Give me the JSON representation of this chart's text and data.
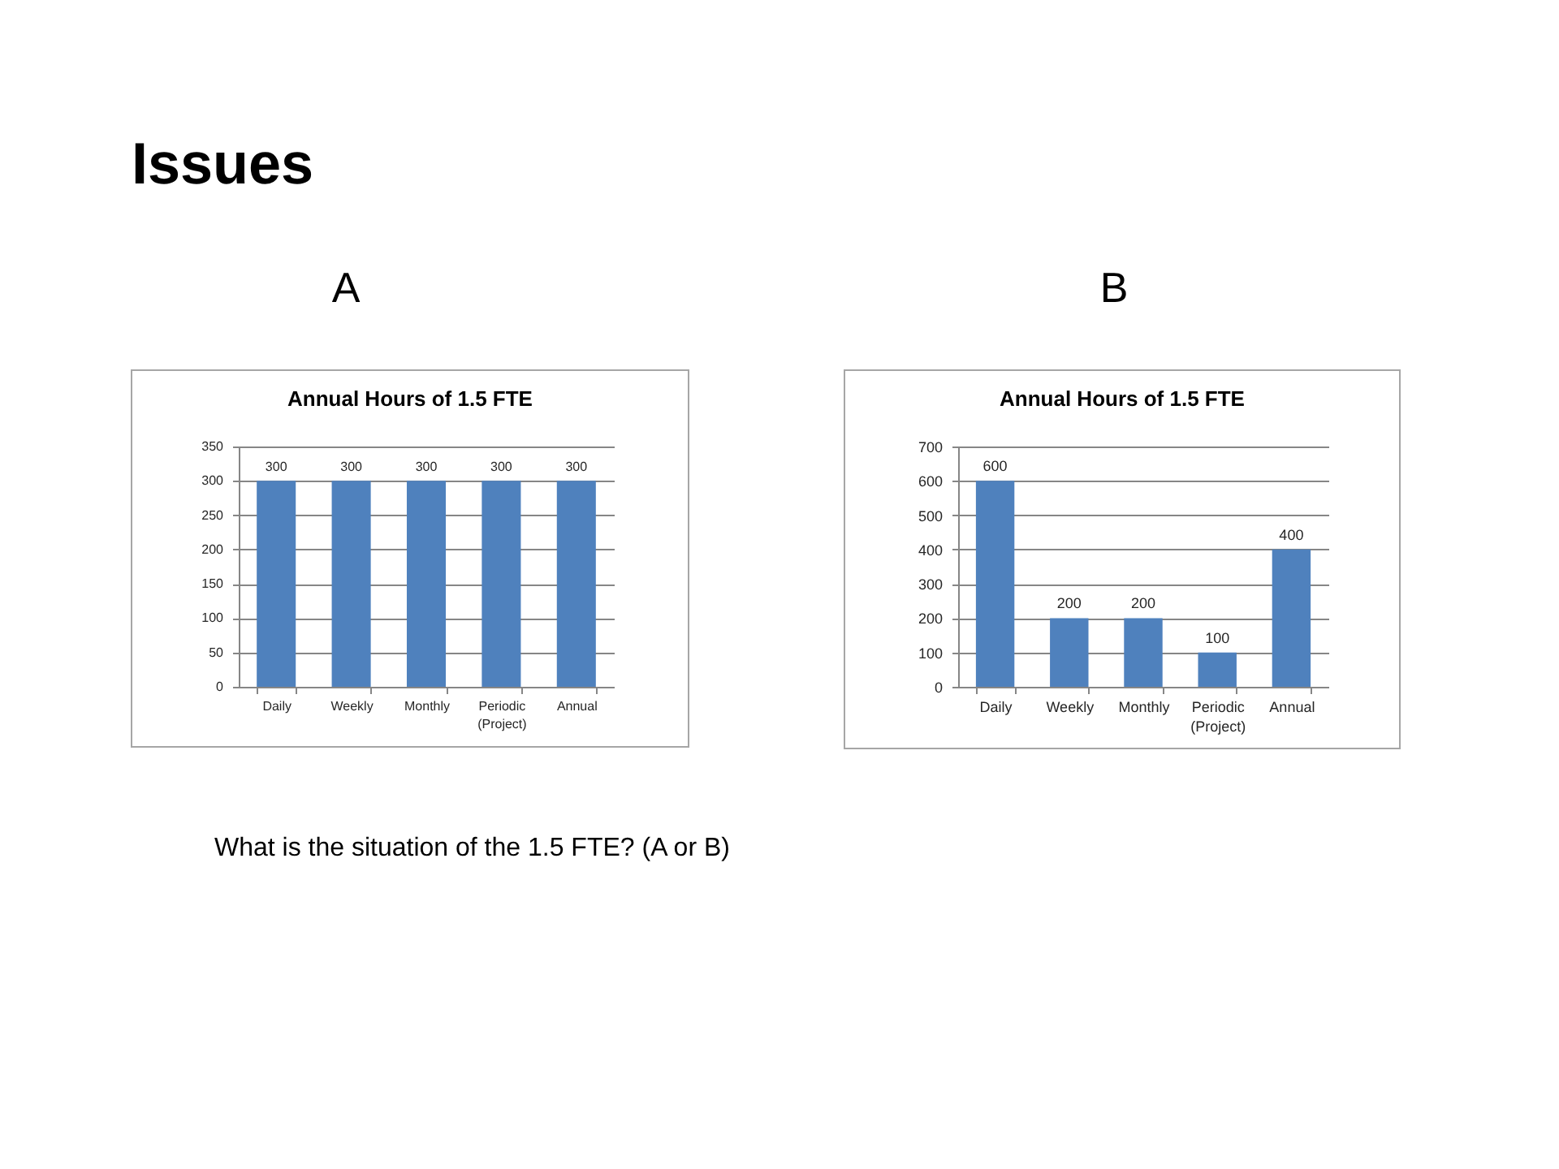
{
  "chart_data": [
    {
      "type": "other",
      "title": "Issues",
      "annotations": [
        "What is the situation of the 1.5 FTE? (A or B)"
      ]
    },
    {
      "type": "bar",
      "title": "Annual Hours of 1.5 FTE",
      "annotations": [
        "A"
      ],
      "categories": [
        "Daily",
        "Weekly",
        "Monthly",
        "Periodic (Project)",
        "Annual"
      ],
      "values": [
        300,
        300,
        300,
        300,
        300
      ],
      "color": "#4f81bd",
      "ylim": [
        0,
        350
      ],
      "yticks": [
        0,
        50,
        100,
        150,
        200,
        250,
        300,
        350
      ],
      "grid": "y",
      "data_labels": true
    },
    {
      "type": "bar",
      "title": "Annual Hours of 1.5 FTE",
      "annotations": [
        "B"
      ],
      "categories": [
        "Daily",
        "Weekly",
        "Monthly",
        "Periodic (Project)",
        "Annual"
      ],
      "values": [
        600,
        200,
        200,
        100,
        400
      ],
      "color": "#4f81bd",
      "ylim": [
        0,
        700
      ],
      "yticks": [
        0,
        100,
        200,
        300,
        400,
        500,
        600,
        700
      ],
      "grid": "y",
      "data_labels": true
    }
  ]
}
